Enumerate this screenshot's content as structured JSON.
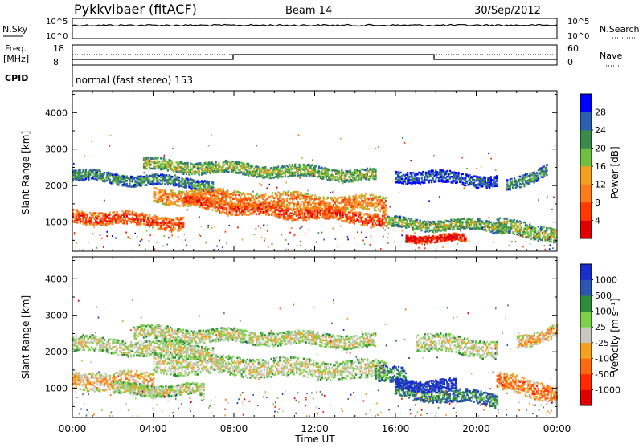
{
  "header": {
    "station": "Pykkvibaer (fitACF)",
    "beam": "Beam 14",
    "date": "30/Sep/2012"
  },
  "status_panels": {
    "nsky_label": "N.Sky",
    "nsearch_label": "N.Search",
    "nsky_ticks": [
      "10^5",
      "10^0"
    ],
    "freq_label_line1": "Freq.",
    "freq_label_line2": "[MHz]",
    "freq_ticks": [
      "18",
      "8"
    ],
    "nave_label": "Nave",
    "nave_ticks": [
      "60",
      "0"
    ],
    "cpid_label": "CPID",
    "cpid_value": "normal (fast stereo) 153"
  },
  "chart_data": [
    {
      "type": "heatmap",
      "name": "power",
      "xlabel": "",
      "ylabel": "Slant Range [km]",
      "x_ticks": [
        "00:00",
        "04:00",
        "08:00",
        "12:00",
        "16:00",
        "20:00",
        "00:00"
      ],
      "x_tick_hours": [
        0,
        4,
        8,
        12,
        16,
        20,
        24
      ],
      "xlim_hours": [
        0,
        24
      ],
      "ylim": [
        200,
        4600
      ],
      "y_ticks": [
        1000,
        2000,
        3000,
        4000
      ],
      "colorbar": {
        "label": "Power [dB]",
        "ticks": [
          "4",
          "8",
          "12",
          "16",
          "20",
          "24",
          "28"
        ],
        "colors": [
          "#0000ff",
          "#2b5fb0",
          "#3a8b4a",
          "#6fc040",
          "#f4a020",
          "#ff7a1a",
          "#ff3a00",
          "#e00000"
        ]
      }
    },
    {
      "type": "heatmap",
      "name": "velocity",
      "xlabel": "Time UT",
      "ylabel": "Slant Range [km]",
      "x_ticks": [
        "00:00",
        "04:00",
        "08:00",
        "12:00",
        "16:00",
        "20:00",
        "00:00"
      ],
      "x_tick_hours": [
        0,
        4,
        8,
        12,
        16,
        20,
        24
      ],
      "xlim_hours": [
        0,
        24
      ],
      "ylim": [
        200,
        4600
      ],
      "y_ticks": [
        1000,
        2000,
        3000,
        4000
      ],
      "colorbar": {
        "label": "Velocity [m s⁻¹]",
        "ticks": [
          "1000",
          "500",
          "100",
          "25",
          "-25",
          "-100",
          "-500",
          "-1000"
        ],
        "colors": [
          "#1a2ecc",
          "#2a55b0",
          "#2f8a3a",
          "#7bd24a",
          "#c8c8c0",
          "#f4a020",
          "#ff6a10",
          "#ff2a00",
          "#e00000"
        ]
      }
    }
  ]
}
